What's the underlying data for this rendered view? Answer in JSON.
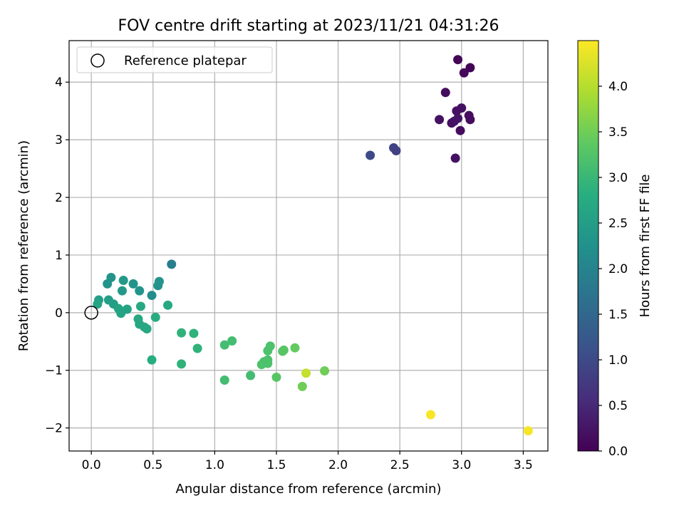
{
  "chart_data": {
    "type": "scatter",
    "title": "FOV centre drift starting at 2023/11/21 04:31:26",
    "xlabel": "Angular distance from reference (arcmin)",
    "ylabel": "Rotation from reference (arcmin)",
    "xlim": [
      -0.18,
      3.7
    ],
    "ylim": [
      -2.4,
      4.72
    ],
    "xticks": [
      "0.0",
      "0.5",
      "1.0",
      "1.5",
      "2.0",
      "2.5",
      "3.0",
      "3.5"
    ],
    "yticks": [
      "−2",
      "−1",
      "0",
      "1",
      "2",
      "3",
      "4"
    ],
    "grid": true,
    "legend": {
      "placement": "top-left",
      "entries": [
        "Reference platepar"
      ]
    },
    "reference_point": {
      "x": 0.0,
      "y": 0.0
    },
    "colorbar": {
      "label": "Hours from first FF file",
      "colormap": "viridis",
      "range": [
        0.0,
        4.5
      ],
      "ticks": [
        "0.0",
        "0.5",
        "1.0",
        "1.5",
        "2.0",
        "2.5",
        "3.0",
        "3.5",
        "4.0"
      ]
    },
    "points": [
      {
        "x": 2.97,
        "y": 4.39,
        "c": 0.05
      },
      {
        "x": 3.07,
        "y": 4.25,
        "c": 0.05
      },
      {
        "x": 3.02,
        "y": 4.16,
        "c": 0.1
      },
      {
        "x": 2.87,
        "y": 3.82,
        "c": 0.15
      },
      {
        "x": 3.0,
        "y": 3.55,
        "c": 0.2
      },
      {
        "x": 2.96,
        "y": 3.5,
        "c": 0.2
      },
      {
        "x": 3.06,
        "y": 3.42,
        "c": 0.15
      },
      {
        "x": 2.97,
        "y": 3.37,
        "c": 0.25
      },
      {
        "x": 2.82,
        "y": 3.35,
        "c": 0.2
      },
      {
        "x": 3.07,
        "y": 3.35,
        "c": 0.15
      },
      {
        "x": 2.94,
        "y": 3.32,
        "c": 0.25
      },
      {
        "x": 2.92,
        "y": 3.29,
        "c": 0.2
      },
      {
        "x": 2.99,
        "y": 3.16,
        "c": 0.15
      },
      {
        "x": 2.95,
        "y": 2.68,
        "c": 0.2
      },
      {
        "x": 2.45,
        "y": 2.86,
        "c": 0.9
      },
      {
        "x": 2.47,
        "y": 2.81,
        "c": 0.85
      },
      {
        "x": 2.26,
        "y": 2.73,
        "c": 1.0
      },
      {
        "x": 0.65,
        "y": 0.84,
        "c": 1.9
      },
      {
        "x": 0.16,
        "y": 0.61,
        "c": 2.3
      },
      {
        "x": 0.26,
        "y": 0.56,
        "c": 2.4
      },
      {
        "x": 0.55,
        "y": 0.54,
        "c": 2.3
      },
      {
        "x": 0.13,
        "y": 0.5,
        "c": 2.3
      },
      {
        "x": 0.34,
        "y": 0.5,
        "c": 2.3
      },
      {
        "x": 0.54,
        "y": 0.47,
        "c": 2.3
      },
      {
        "x": 0.25,
        "y": 0.38,
        "c": 2.4
      },
      {
        "x": 0.39,
        "y": 0.38,
        "c": 2.3
      },
      {
        "x": 0.49,
        "y": 0.3,
        "c": 2.2
      },
      {
        "x": 0.06,
        "y": 0.22,
        "c": 2.5
      },
      {
        "x": 0.14,
        "y": 0.22,
        "c": 2.5
      },
      {
        "x": 0.05,
        "y": 0.15,
        "c": 2.6
      },
      {
        "x": 0.18,
        "y": 0.15,
        "c": 2.5
      },
      {
        "x": 0.62,
        "y": 0.13,
        "c": 2.7
      },
      {
        "x": 0.4,
        "y": 0.11,
        "c": 2.7
      },
      {
        "x": 0.22,
        "y": 0.07,
        "c": 2.6
      },
      {
        "x": 0.29,
        "y": 0.06,
        "c": 2.6
      },
      {
        "x": 0.24,
        "y": -0.01,
        "c": 2.6
      },
      {
        "x": 0.52,
        "y": -0.08,
        "c": 2.8
      },
      {
        "x": 0.38,
        "y": -0.11,
        "c": 2.7
      },
      {
        "x": 0.39,
        "y": -0.2,
        "c": 2.7
      },
      {
        "x": 0.43,
        "y": -0.25,
        "c": 2.7
      },
      {
        "x": 0.45,
        "y": -0.28,
        "c": 2.7
      },
      {
        "x": 0.73,
        "y": -0.35,
        "c": 2.9
      },
      {
        "x": 0.83,
        "y": -0.36,
        "c": 2.9
      },
      {
        "x": 0.86,
        "y": -0.62,
        "c": 2.9
      },
      {
        "x": 0.49,
        "y": -0.82,
        "c": 2.8
      },
      {
        "x": 0.73,
        "y": -0.89,
        "c": 2.9
      },
      {
        "x": 1.14,
        "y": -0.49,
        "c": 3.1
      },
      {
        "x": 1.08,
        "y": -0.56,
        "c": 3.1
      },
      {
        "x": 1.45,
        "y": -0.58,
        "c": 3.2
      },
      {
        "x": 1.65,
        "y": -0.61,
        "c": 3.4
      },
      {
        "x": 1.56,
        "y": -0.65,
        "c": 3.3
      },
      {
        "x": 1.43,
        "y": -0.66,
        "c": 3.2
      },
      {
        "x": 1.55,
        "y": -0.67,
        "c": 3.3
      },
      {
        "x": 1.43,
        "y": -0.82,
        "c": 3.2
      },
      {
        "x": 1.4,
        "y": -0.85,
        "c": 3.2
      },
      {
        "x": 1.43,
        "y": -0.88,
        "c": 3.2
      },
      {
        "x": 1.38,
        "y": -0.9,
        "c": 3.2
      },
      {
        "x": 1.89,
        "y": -1.01,
        "c": 3.5
      },
      {
        "x": 1.74,
        "y": -1.05,
        "c": 4.1
      },
      {
        "x": 1.29,
        "y": -1.09,
        "c": 3.1
      },
      {
        "x": 1.5,
        "y": -1.12,
        "c": 3.3
      },
      {
        "x": 1.08,
        "y": -1.17,
        "c": 3.1
      },
      {
        "x": 1.71,
        "y": -1.28,
        "c": 3.5
      },
      {
        "x": 2.75,
        "y": -1.77,
        "c": 4.45
      },
      {
        "x": 3.54,
        "y": -2.05,
        "c": 4.45
      }
    ]
  }
}
